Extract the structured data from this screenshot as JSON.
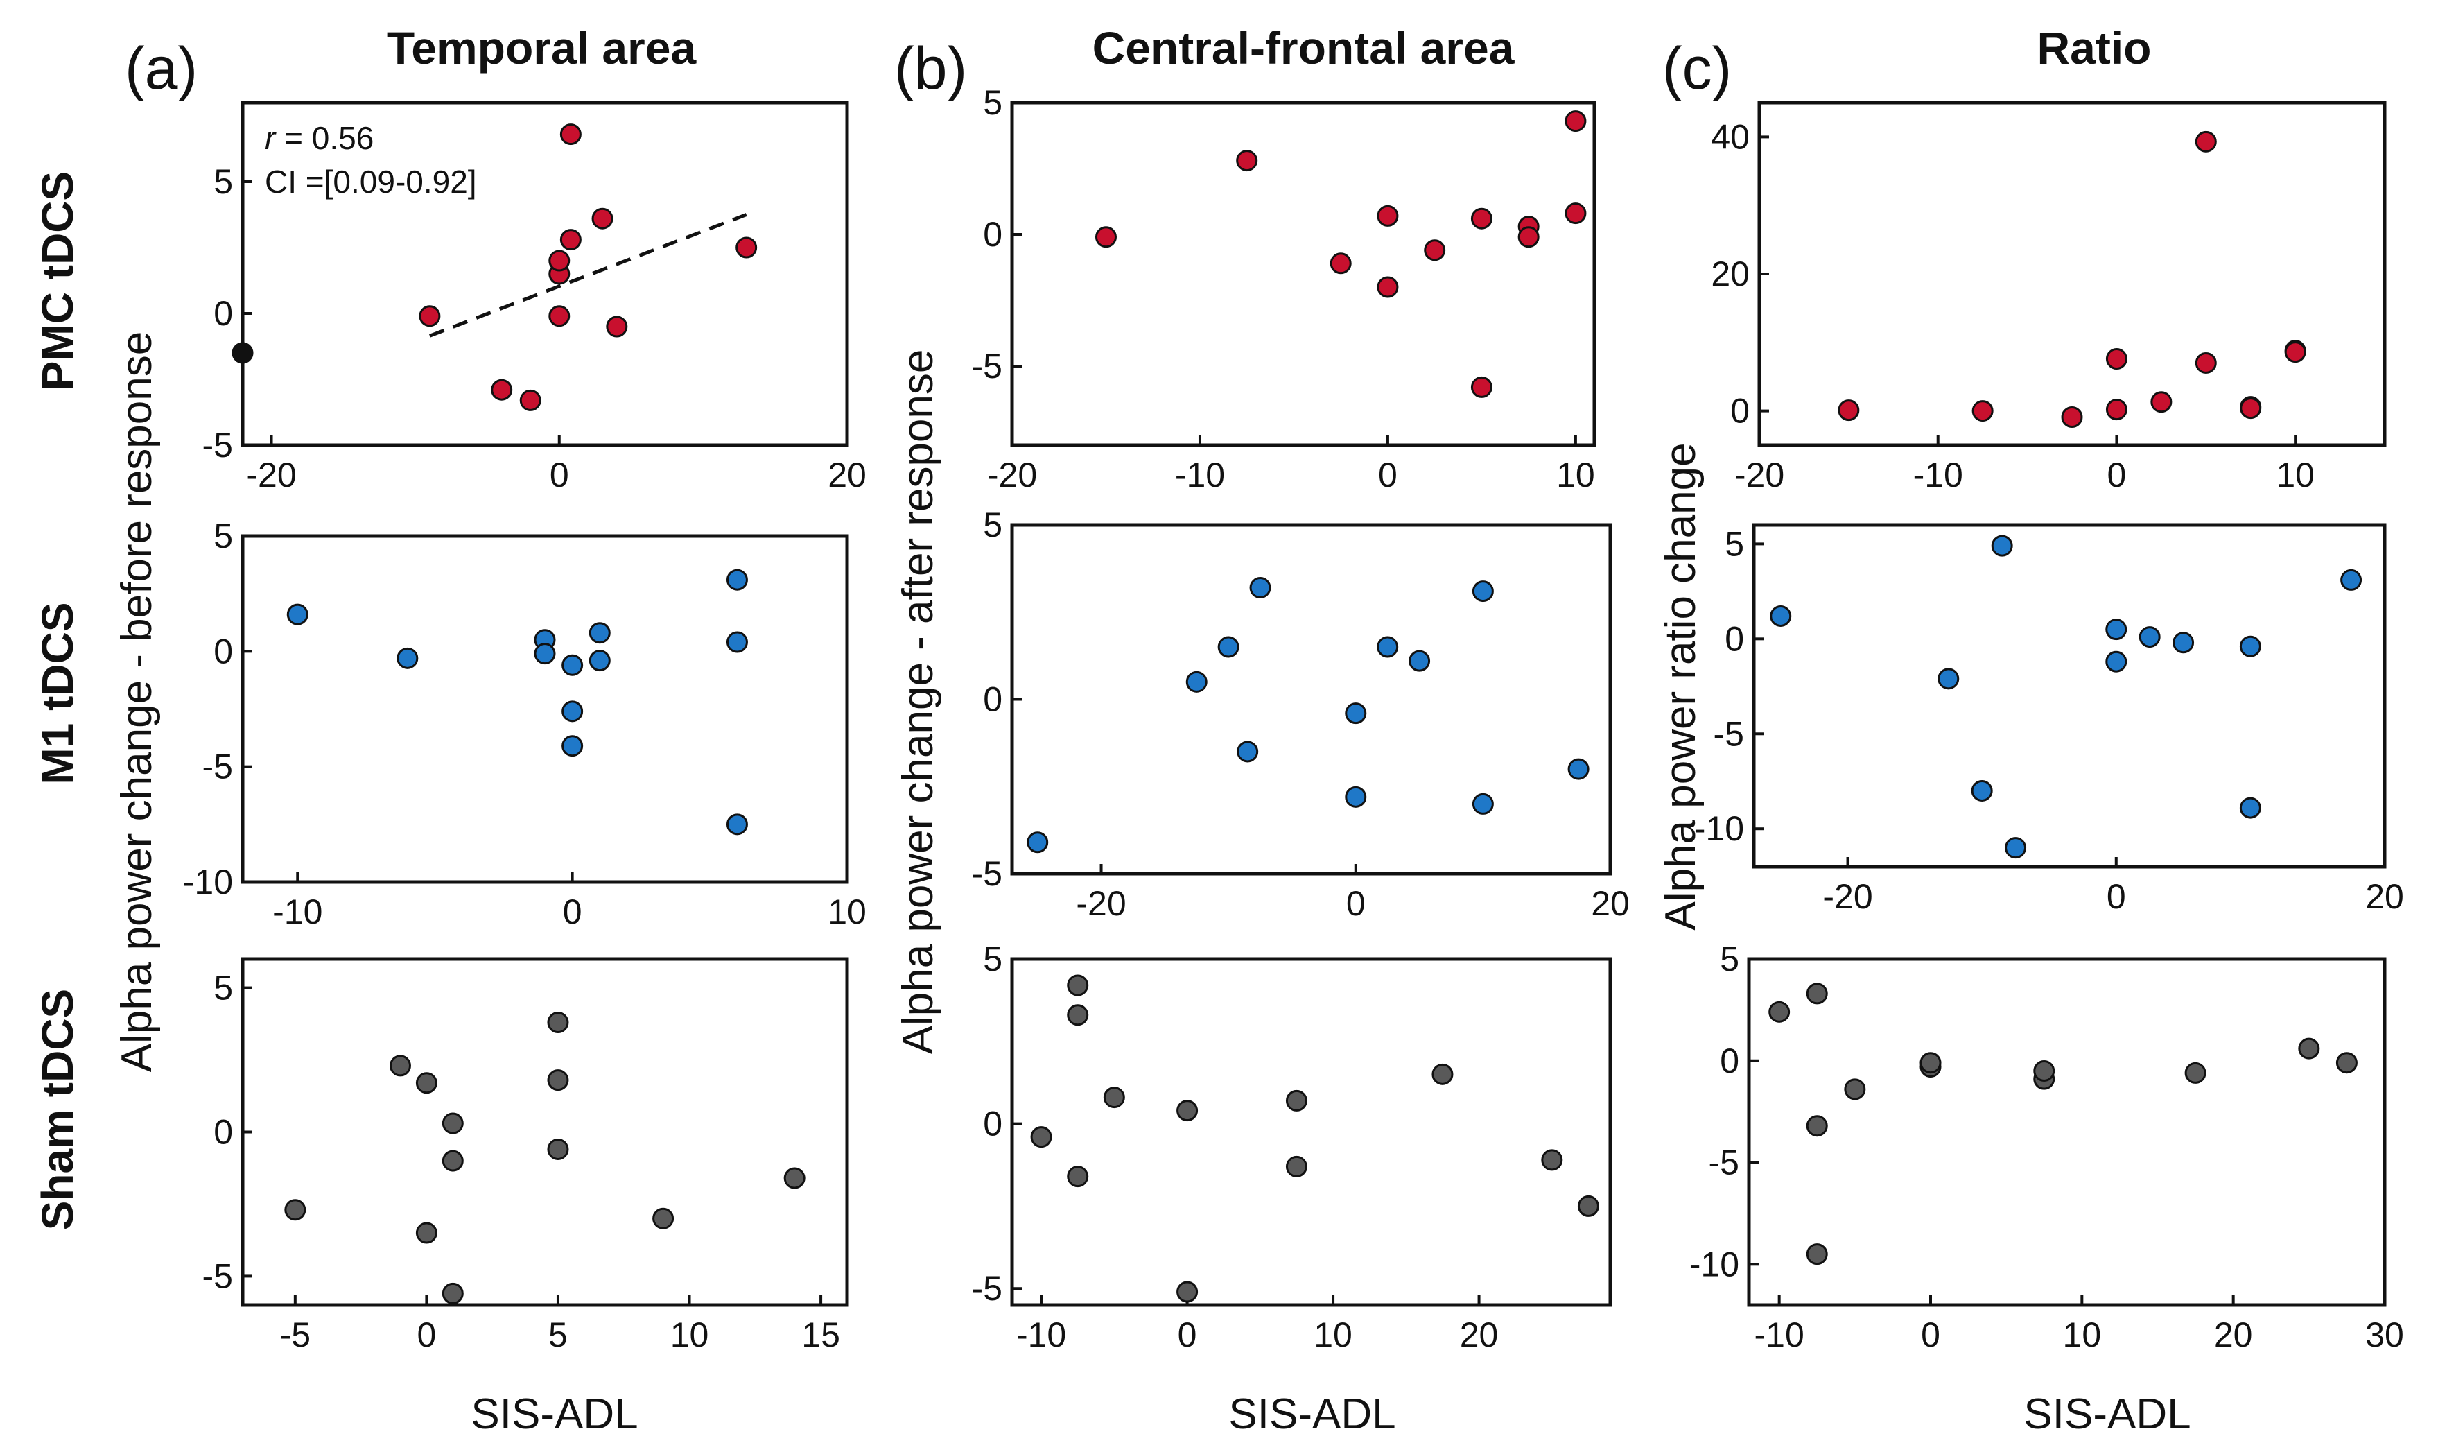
{
  "colors": {
    "pmc": "#c8102e",
    "m1": "#1f78c8",
    "sham": "#595959",
    "outlier": "#111111"
  },
  "row_labels": [
    {
      "text": "PMC tDCS",
      "color": "#d0121b"
    },
    {
      "text": "M1 tDCS",
      "color": "#1a7dc8"
    },
    {
      "text": "Sham tDCS",
      "color": "#6a6a6a"
    }
  ],
  "columns": [
    {
      "label": "(a)",
      "title": "Temporal area",
      "ylabel": "Alpha power change - before response",
      "xlabel": "SIS-ADL"
    },
    {
      "label": "(b)",
      "title": "Central-frontal area",
      "ylabel": "Alpha power change - after response",
      "xlabel": "SIS-ADL"
    },
    {
      "label": "(c)",
      "title": "Ratio",
      "ylabel": "Alpha power ratio change",
      "xlabel": "SIS-ADL"
    }
  ],
  "annotation": {
    "r_symbol": "r",
    "r_value": " = 0.56",
    "ci": "CI =[0.09-0.92]"
  },
  "chart_data": [
    {
      "type": "scatter",
      "id": "temporal-pmc",
      "group": "PMC tDCS",
      "area": "Temporal area",
      "xlim": [
        -22,
        20
      ],
      "ylim": [
        -5,
        8
      ],
      "xticks": [
        -20,
        0,
        20
      ],
      "yticks": [
        -5,
        0,
        5
      ],
      "points": [
        [
          -9,
          -0.1
        ],
        [
          -4,
          -2.9
        ],
        [
          -2,
          -3.3
        ],
        [
          0,
          -0.1
        ],
        [
          0,
          1.5
        ],
        [
          0,
          2.0
        ],
        [
          0.8,
          2.8
        ],
        [
          0.8,
          6.8
        ],
        [
          3,
          3.6
        ],
        [
          4,
          -0.5
        ],
        [
          13,
          2.5
        ]
      ],
      "outlier": [
        -22,
        -1.5
      ],
      "fit": {
        "x": [
          -9,
          13
        ],
        "y": [
          -0.85,
          3.75
        ],
        "style": "dashed"
      }
    },
    {
      "type": "scatter",
      "id": "central-pmc",
      "group": "PMC tDCS",
      "area": "Central-frontal area",
      "xlim": [
        -20,
        11
      ],
      "ylim": [
        -8,
        5
      ],
      "xticks": [
        -20,
        -10,
        0,
        10
      ],
      "yticks": [
        -5,
        0,
        5
      ],
      "points": [
        [
          -15,
          -0.1
        ],
        [
          -7.5,
          2.8
        ],
        [
          -2.5,
          -1.1
        ],
        [
          0,
          0.7
        ],
        [
          0,
          -2.0
        ],
        [
          2.5,
          -0.6
        ],
        [
          5,
          0.6
        ],
        [
          5,
          -5.8
        ],
        [
          7.5,
          0.3
        ],
        [
          7.5,
          -0.1
        ],
        [
          10,
          4.3
        ],
        [
          10,
          0.8
        ]
      ]
    },
    {
      "type": "scatter",
      "id": "ratio-pmc",
      "group": "PMC tDCS",
      "area": "Ratio",
      "xlim": [
        -20,
        15
      ],
      "ylim": [
        -5,
        45
      ],
      "xticks": [
        -20,
        -10,
        0,
        10
      ],
      "yticks": [
        0,
        20,
        40
      ],
      "points": [
        [
          -15,
          0.1
        ],
        [
          -7.5,
          0.0
        ],
        [
          -2.5,
          -0.9
        ],
        [
          0,
          7.6
        ],
        [
          0,
          0.2
        ],
        [
          2.5,
          1.3
        ],
        [
          5,
          39.3
        ],
        [
          5,
          7.0
        ],
        [
          7.5,
          0.6
        ],
        [
          7.5,
          0.4
        ],
        [
          10,
          8.8
        ],
        [
          10,
          8.6
        ]
      ]
    },
    {
      "type": "scatter",
      "id": "temporal-m1",
      "group": "M1 tDCS",
      "area": "Temporal area",
      "xlim": [
        -12,
        10
      ],
      "ylim": [
        -10,
        5
      ],
      "xticks": [
        -10,
        0,
        10
      ],
      "yticks": [
        -10,
        -5,
        0,
        5
      ],
      "points": [
        [
          -10,
          1.6
        ],
        [
          -6,
          -0.3
        ],
        [
          -1,
          0.5
        ],
        [
          -1,
          -0.1
        ],
        [
          0,
          -0.6
        ],
        [
          0,
          -2.6
        ],
        [
          0,
          -4.1
        ],
        [
          1,
          0.8
        ],
        [
          1,
          -0.4
        ],
        [
          6,
          3.1
        ],
        [
          6,
          0.4
        ],
        [
          6,
          -7.5
        ]
      ]
    },
    {
      "type": "scatter",
      "id": "central-m1",
      "group": "M1 tDCS",
      "area": "Central-frontal area",
      "xlim": [
        -27,
        20
      ],
      "ylim": [
        -5,
        5
      ],
      "xticks": [
        -20,
        0,
        20
      ],
      "yticks": [
        -5,
        0,
        5
      ],
      "points": [
        [
          -25,
          -4.1
        ],
        [
          -12.5,
          0.5
        ],
        [
          -10,
          1.5
        ],
        [
          -8.5,
          -1.5
        ],
        [
          -7.5,
          3.2
        ],
        [
          0,
          -0.4
        ],
        [
          0,
          -2.8
        ],
        [
          2.5,
          1.5
        ],
        [
          5,
          1.1
        ],
        [
          10,
          3.1
        ],
        [
          10,
          -3.0
        ],
        [
          17.5,
          -2.0
        ]
      ]
    },
    {
      "type": "scatter",
      "id": "ratio-m1",
      "group": "M1 tDCS",
      "area": "Ratio",
      "xlim": [
        -27,
        20
      ],
      "ylim": [
        -12,
        6
      ],
      "xticks": [
        -20,
        0,
        20
      ],
      "yticks": [
        -10,
        -5,
        0,
        5
      ],
      "points": [
        [
          -25,
          1.2
        ],
        [
          -12.5,
          -2.1
        ],
        [
          -10,
          -8.0
        ],
        [
          -8.5,
          4.9
        ],
        [
          -7.5,
          -11.0
        ],
        [
          0,
          0.5
        ],
        [
          0,
          -1.2
        ],
        [
          2.5,
          0.1
        ],
        [
          5,
          -0.2
        ],
        [
          10,
          -0.4
        ],
        [
          10,
          -8.9
        ],
        [
          17.5,
          3.1
        ]
      ]
    },
    {
      "type": "scatter",
      "id": "temporal-sham",
      "group": "Sham tDCS",
      "area": "Temporal area",
      "xlim": [
        -7,
        16
      ],
      "ylim": [
        -6,
        6
      ],
      "xticks": [
        -5,
        0,
        5,
        10,
        15
      ],
      "yticks": [
        -5,
        0,
        5
      ],
      "points": [
        [
          -5,
          -2.7
        ],
        [
          -1,
          2.3
        ],
        [
          0,
          1.7
        ],
        [
          0,
          -3.5
        ],
        [
          1,
          0.3
        ],
        [
          1,
          -1.0
        ],
        [
          1,
          -5.6
        ],
        [
          5,
          3.8
        ],
        [
          5,
          1.8
        ],
        [
          5,
          -0.6
        ],
        [
          9,
          -3.0
        ],
        [
          14,
          -1.6
        ]
      ]
    },
    {
      "type": "scatter",
      "id": "central-sham",
      "group": "Sham tDCS",
      "area": "Central-frontal area",
      "xlim": [
        -12,
        29
      ],
      "ylim": [
        -5.5,
        5
      ],
      "xticks": [
        -10,
        0,
        10,
        20
      ],
      "yticks": [
        -5,
        0,
        5
      ],
      "points": [
        [
          -10,
          -0.4
        ],
        [
          -7.5,
          4.2
        ],
        [
          -7.5,
          3.3
        ],
        [
          -7.5,
          -1.6
        ],
        [
          -5,
          0.8
        ],
        [
          0,
          0.4
        ],
        [
          0,
          -5.1
        ],
        [
          7.5,
          0.7
        ],
        [
          7.5,
          -1.3
        ],
        [
          17.5,
          1.5
        ],
        [
          25,
          -1.1
        ],
        [
          27.5,
          -2.5
        ]
      ]
    },
    {
      "type": "scatter",
      "id": "ratio-sham",
      "group": "Sham tDCS",
      "area": "Ratio",
      "xlim": [
        -12,
        30
      ],
      "ylim": [
        -12,
        5
      ],
      "xticks": [
        -10,
        0,
        10,
        20,
        30
      ],
      "yticks": [
        -10,
        -5,
        0,
        5
      ],
      "points": [
        [
          -10,
          2.4
        ],
        [
          -7.5,
          3.3
        ],
        [
          -7.5,
          -3.2
        ],
        [
          -7.5,
          -9.5
        ],
        [
          -5,
          -1.4
        ],
        [
          0,
          -0.3
        ],
        [
          0,
          -0.1
        ],
        [
          7.5,
          -0.9
        ],
        [
          7.5,
          -0.5
        ],
        [
          17.5,
          -0.6
        ],
        [
          25,
          0.6
        ],
        [
          27.5,
          -0.1
        ]
      ]
    }
  ]
}
